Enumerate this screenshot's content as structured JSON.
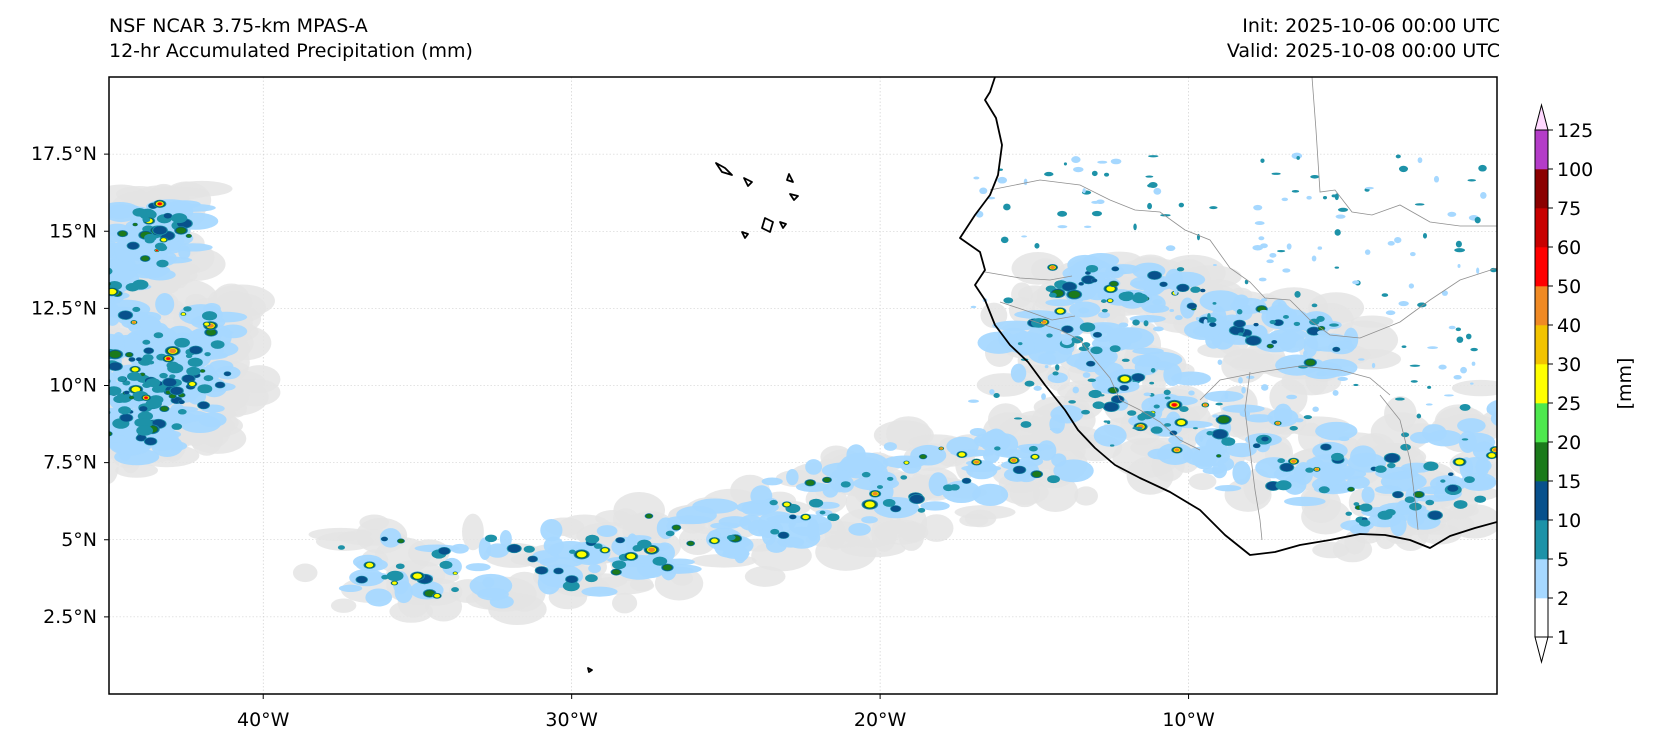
{
  "header": {
    "model": "NSF NCAR 3.75-km MPAS-A",
    "field": "12-hr Accumulated Precipitation (mm)",
    "init": "Init: 2025-10-06 00:00 UTC",
    "valid": "Valid: 2025-10-08 00:00 UTC"
  },
  "map": {
    "projection": "PlateCarree",
    "lon_range": [
      -45,
      0
    ],
    "lat_range": [
      0,
      20
    ],
    "lat_ticks": [
      {
        "value": 17.5,
        "label": "17.5°N"
      },
      {
        "value": 15,
        "label": "15°N"
      },
      {
        "value": 12.5,
        "label": "12.5°N"
      },
      {
        "value": 10,
        "label": "10°N"
      },
      {
        "value": 7.5,
        "label": "7.5°N"
      },
      {
        "value": 5,
        "label": "5°N"
      },
      {
        "value": 2.5,
        "label": "2.5°N"
      }
    ],
    "lon_ticks": [
      {
        "value": -40,
        "label": "40°W"
      },
      {
        "value": -30,
        "label": "30°W"
      },
      {
        "value": -20,
        "label": "20°W"
      },
      {
        "value": -10,
        "label": "10°W"
      }
    ],
    "gridlines": true,
    "coastline_color": "#000000",
    "border_color": "#888888"
  },
  "colorbar": {
    "label": "[mm]",
    "extend": "both",
    "levels": [
      1,
      2,
      5,
      10,
      15,
      20,
      25,
      30,
      40,
      50,
      60,
      75,
      100,
      125
    ],
    "level_labels": [
      "1",
      "2",
      "5",
      "10",
      "15",
      "20",
      "25",
      "30",
      "40",
      "50",
      "60",
      "75",
      "100",
      "125"
    ],
    "colors": [
      "#ffffff",
      "#a6d8ff",
      "#1d92a8",
      "#08518c",
      "#1b7a1b",
      "#4ee84e",
      "#ffff00",
      "#f2c300",
      "#f08a24",
      "#ff0000",
      "#c80000",
      "#8b0000",
      "#b43cc8",
      "#ffc8ff"
    ],
    "under_color": "#e6e6e6",
    "over_color": "#ffd8ff"
  }
}
